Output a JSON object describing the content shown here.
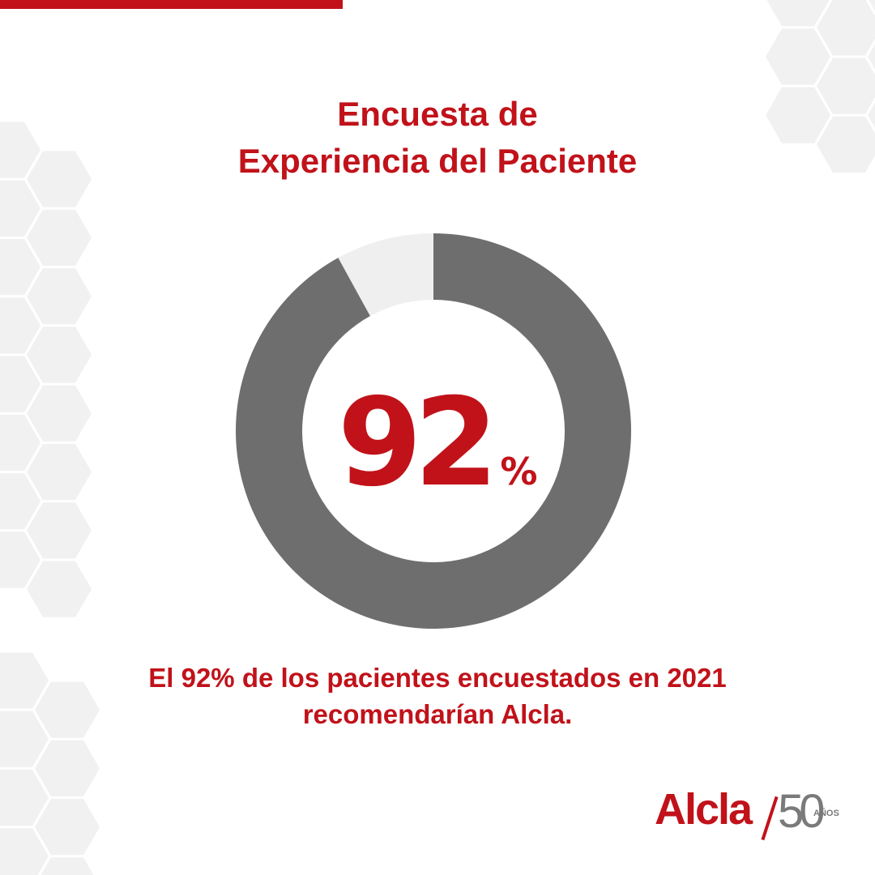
{
  "title": {
    "line1": "Encuesta de",
    "line2": "Experiencia del Paciente"
  },
  "highlight": {
    "value": "92",
    "unit": "%"
  },
  "caption": {
    "line1": "El 92% de los pacientes encuestados en 2021",
    "line2": "recomendarían Alcla."
  },
  "logo": {
    "brand": "Alcla",
    "years": "50",
    "years_label": "AÑOS"
  },
  "colors": {
    "accent": "#c1121a",
    "series_primary": "#6e6e6e",
    "series_rest": "#efefef",
    "hex_pattern": "#f1f1f1"
  },
  "chart_data": {
    "type": "pie",
    "donut": true,
    "title": "",
    "slices": [
      {
        "label": "",
        "value": 92,
        "color": "#6e6e6e"
      },
      {
        "label": "",
        "value": 8,
        "color": "#efefef"
      }
    ],
    "center_label": "92%",
    "legend": "none"
  }
}
